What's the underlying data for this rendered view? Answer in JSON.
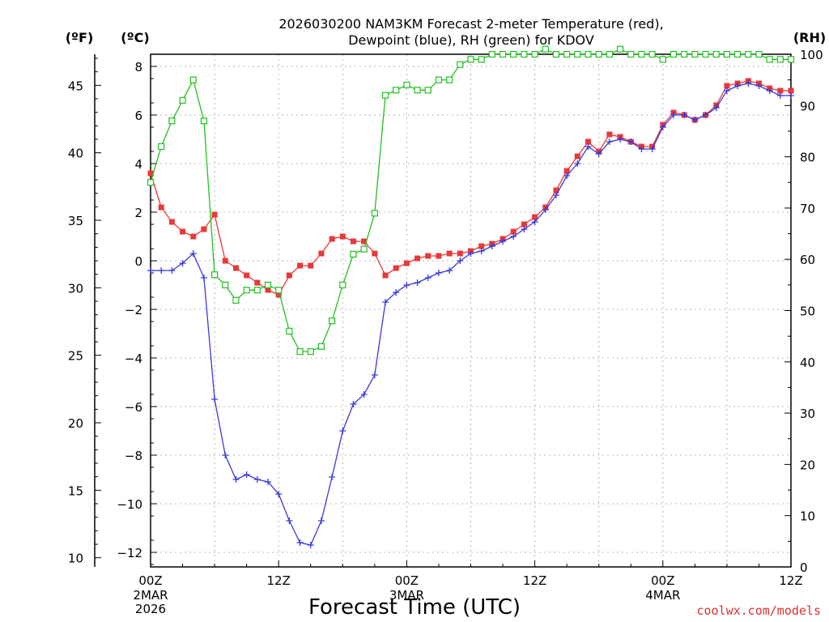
{
  "chart_data": {
    "type": "line",
    "title_line1": "2026030200 NAM3KM Forecast 2-meter Temperature (red),",
    "title_line2": "Dewpoint (blue), RH (green) for KDOV",
    "xlabel": "Forecast Time (UTC)",
    "credit": "coolwx.com/models",
    "units": {
      "f": "(ºF)",
      "c": "(ºC)",
      "rh": "(RH)"
    },
    "x_hours_range": [
      0,
      60
    ],
    "c_range": [
      -12.6,
      8.5
    ],
    "rh_range": [
      0,
      100
    ],
    "left_f_ticks": [
      10,
      15,
      20,
      25,
      30,
      35,
      40,
      45
    ],
    "left_c_ticks": [
      -12,
      -10,
      -8,
      -6,
      -4,
      -2,
      0,
      2,
      4,
      6,
      8
    ],
    "c_tick_labels": [
      "−12",
      "−10",
      "−8",
      "−6",
      "−4",
      "−2",
      "0",
      "2",
      "4",
      "6",
      "8"
    ],
    "right_rh_ticks": [
      0,
      10,
      20,
      30,
      40,
      50,
      60,
      70,
      80,
      90,
      100
    ],
    "x_ticks": [
      {
        "hour": 0,
        "label": "00Z",
        "date": "2MAR",
        "year": "2026"
      },
      {
        "hour": 12,
        "label": "12Z",
        "date": "",
        "year": ""
      },
      {
        "hour": 24,
        "label": "00Z",
        "date": "3MAR",
        "year": ""
      },
      {
        "hour": 36,
        "label": "12Z",
        "date": "",
        "year": ""
      },
      {
        "hour": 48,
        "label": "00Z",
        "date": "4MAR",
        "year": ""
      },
      {
        "hour": 60,
        "label": "12Z",
        "date": "",
        "year": ""
      }
    ],
    "series": [
      {
        "name": "Temperature",
        "color": "#e83838",
        "marker": "square-filled",
        "hours": [
          0,
          1,
          2,
          3,
          4,
          5,
          6,
          7,
          8,
          9,
          10,
          11,
          12,
          13,
          14,
          15,
          16,
          17,
          18,
          19,
          20,
          21,
          22,
          23,
          24,
          25,
          26,
          27,
          28,
          29,
          30,
          31,
          32,
          33,
          34,
          35,
          36,
          37,
          38,
          39,
          40,
          41,
          42,
          43,
          44,
          45,
          46,
          47,
          48,
          49,
          50,
          51,
          52,
          53,
          54,
          55,
          56,
          57,
          58,
          59,
          60
        ],
        "values_c": [
          3.6,
          2.2,
          1.6,
          1.2,
          1.0,
          1.3,
          1.9,
          0.0,
          -0.3,
          -0.6,
          -0.9,
          -1.2,
          -1.4,
          -0.6,
          -0.2,
          -0.2,
          0.3,
          0.9,
          1.0,
          0.8,
          0.8,
          0.3,
          -0.6,
          -0.3,
          -0.1,
          0.1,
          0.2,
          0.2,
          0.3,
          0.3,
          0.4,
          0.6,
          0.7,
          0.9,
          1.2,
          1.5,
          1.8,
          2.2,
          2.9,
          3.7,
          4.3,
          4.9,
          4.5,
          5.2,
          5.1,
          4.9,
          4.7,
          4.7,
          5.6,
          6.1,
          6.0,
          5.8,
          6.0,
          6.4,
          7.2,
          7.3,
          7.4,
          7.3,
          7.1,
          7.0,
          7.0
        ]
      },
      {
        "name": "Dewpoint",
        "color": "#3a3ad8",
        "marker": "plus",
        "hours": [
          0,
          1,
          2,
          3,
          4,
          5,
          6,
          7,
          8,
          9,
          10,
          11,
          12,
          13,
          14,
          15,
          16,
          17,
          18,
          19,
          20,
          21,
          22,
          23,
          24,
          25,
          26,
          27,
          28,
          29,
          30,
          31,
          32,
          33,
          34,
          35,
          36,
          37,
          38,
          39,
          40,
          41,
          42,
          43,
          44,
          45,
          46,
          47,
          48,
          49,
          50,
          51,
          52,
          53,
          54,
          55,
          56,
          57,
          58,
          59,
          60
        ],
        "values_c": [
          -0.4,
          -0.4,
          -0.4,
          -0.1,
          0.3,
          -0.7,
          -5.7,
          -8.0,
          -9.0,
          -8.8,
          -9.0,
          -9.1,
          -9.6,
          -10.7,
          -11.6,
          -11.7,
          -10.7,
          -8.9,
          -7.0,
          -5.9,
          -5.5,
          -4.7,
          -1.7,
          -1.3,
          -1.0,
          -0.9,
          -0.7,
          -0.5,
          -0.4,
          0.0,
          0.3,
          0.4,
          0.6,
          0.8,
          1.0,
          1.3,
          1.6,
          2.1,
          2.7,
          3.5,
          4.0,
          4.7,
          4.4,
          4.9,
          5.0,
          4.9,
          4.6,
          4.6,
          5.5,
          6.0,
          6.0,
          5.8,
          6.0,
          6.3,
          7.0,
          7.2,
          7.3,
          7.2,
          7.0,
          6.8,
          6.8
        ]
      },
      {
        "name": "RH",
        "color": "#22c022",
        "marker": "square-open",
        "hours": [
          0,
          1,
          2,
          3,
          4,
          5,
          6,
          7,
          8,
          9,
          10,
          11,
          12,
          13,
          14,
          15,
          16,
          17,
          18,
          19,
          20,
          21,
          22,
          23,
          24,
          25,
          26,
          27,
          28,
          29,
          30,
          31,
          32,
          33,
          34,
          35,
          36,
          37,
          38,
          39,
          40,
          41,
          42,
          43,
          44,
          45,
          46,
          47,
          48,
          49,
          50,
          51,
          52,
          53,
          54,
          55,
          56,
          57,
          58,
          59,
          60
        ],
        "values_rh": [
          75,
          82,
          87,
          91,
          95,
          87,
          57,
          55,
          52,
          54,
          54,
          55,
          54,
          46,
          42,
          42,
          43,
          48,
          55,
          61,
          62,
          69,
          92,
          93,
          94,
          93,
          93,
          95,
          95,
          98,
          99,
          99,
          100,
          100,
          100,
          100,
          100,
          101,
          100,
          100,
          100,
          100,
          100,
          100,
          101,
          100,
          100,
          100,
          99,
          100,
          100,
          100,
          100,
          100,
          100,
          100,
          100,
          100,
          99,
          99,
          99
        ]
      }
    ]
  }
}
